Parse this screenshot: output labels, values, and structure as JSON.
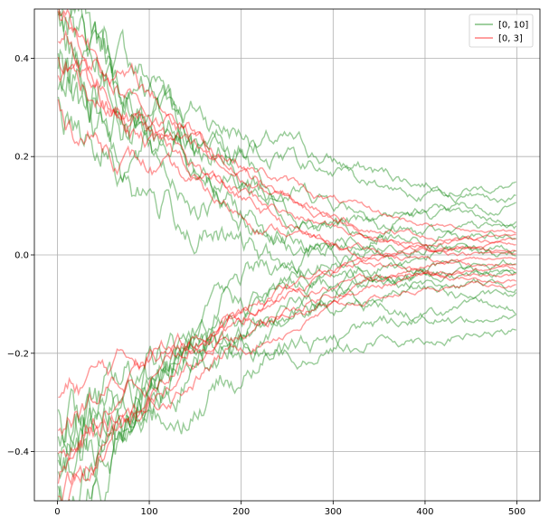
{
  "chart_data": {
    "type": "line",
    "title": "",
    "xlabel": "",
    "ylabel": "",
    "xlim": [
      -25,
      525
    ],
    "ylim": [
      -0.5,
      0.5
    ],
    "x_ticks": [
      0,
      100,
      200,
      300,
      400,
      500
    ],
    "x_tick_labels": [
      "0",
      "100",
      "200",
      "300",
      "400",
      "500"
    ],
    "y_ticks": [
      -0.4,
      -0.2,
      0.0,
      0.2,
      0.4
    ],
    "y_tick_labels": [
      "−0.4",
      "−0.2",
      "0.0",
      "0.2",
      "0.4"
    ],
    "grid": true,
    "legend_position": "top-right",
    "x_range": [
      0,
      500
    ],
    "series": [
      {
        "name": "[0, 10]",
        "color": "#008000",
        "opacity": 0.4,
        "runs": [
          {
            "final_value": 0.14,
            "start": 0.5
          },
          {
            "final_value": 0.1,
            "start": -0.45
          },
          {
            "final_value": 0.07,
            "start": 0.45
          },
          {
            "final_value": 0.05,
            "start": -0.5
          },
          {
            "final_value": 0.03,
            "start": 0.4
          },
          {
            "final_value": 0.01,
            "start": -0.4
          },
          {
            "final_value": 0.0,
            "start": 0.5
          },
          {
            "final_value": -0.02,
            "start": -0.5
          },
          {
            "final_value": -0.04,
            "start": 0.35
          },
          {
            "final_value": -0.06,
            "start": -0.35
          },
          {
            "final_value": -0.09,
            "start": 0.5
          },
          {
            "final_value": -0.11,
            "start": -0.5
          },
          {
            "final_value": -0.13,
            "start": 0.3
          },
          {
            "final_value": -0.16,
            "start": -0.3
          },
          {
            "final_value": 0.12,
            "start": 0.45
          },
          {
            "final_value": -0.03,
            "start": -0.45
          }
        ]
      },
      {
        "name": "[0, 3]",
        "color": "#ff0000",
        "opacity": 0.4,
        "runs": [
          {
            "final_value": 0.05,
            "start": 0.5
          },
          {
            "final_value": 0.04,
            "start": -0.5
          },
          {
            "final_value": 0.03,
            "start": 0.4
          },
          {
            "final_value": 0.02,
            "start": -0.4
          },
          {
            "final_value": 0.0,
            "start": 0.5
          },
          {
            "final_value": -0.01,
            "start": -0.5
          },
          {
            "final_value": -0.02,
            "start": 0.3
          },
          {
            "final_value": -0.03,
            "start": -0.3
          },
          {
            "final_value": -0.05,
            "start": 0.45
          },
          {
            "final_value": -0.06,
            "start": -0.45
          },
          {
            "final_value": 0.01,
            "start": 0.35
          },
          {
            "final_value": -0.04,
            "start": -0.35
          }
        ]
      }
    ]
  }
}
